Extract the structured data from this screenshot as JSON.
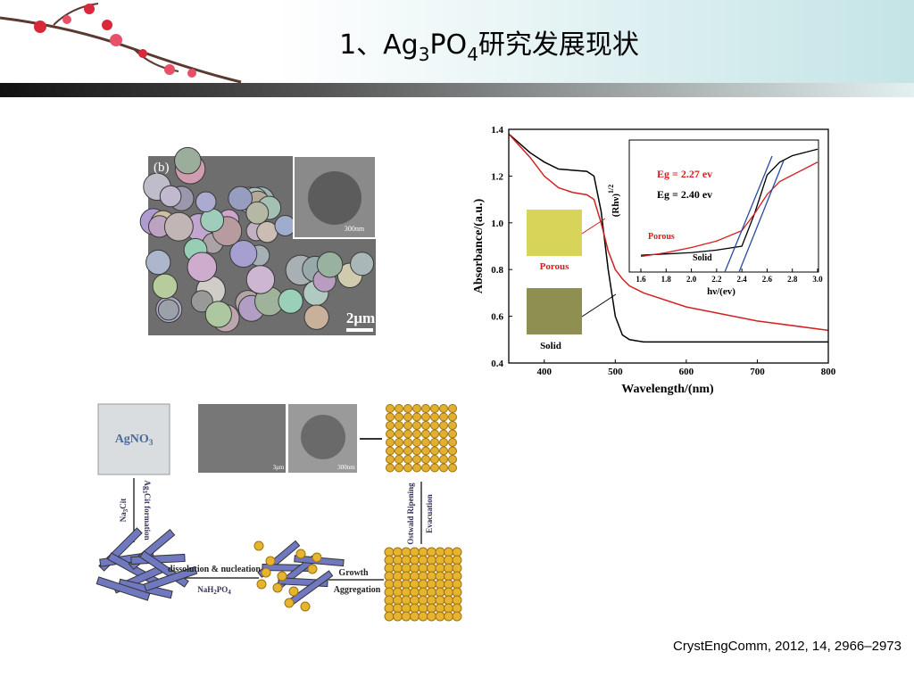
{
  "header": {
    "title": [
      "1、Ag",
      "3",
      "PO",
      "4",
      "研究发展现状"
    ]
  },
  "sem_image": {
    "panel": "(b)",
    "inset_scale": "300nm",
    "scale": "2μm"
  },
  "spectrum": {
    "type": "line",
    "xlabel": "Wavelength/(nm)",
    "ylabel": "Absorbance/(a.u.)",
    "xlim": [
      350,
      800
    ],
    "ylim": [
      0.4,
      1.4
    ],
    "xticks": [
      400,
      500,
      600,
      700,
      800
    ],
    "yticks": [
      0.4,
      0.6,
      0.8,
      {
        "value": 1,
        "label": "1.0"
      },
      1.2,
      1.4
    ],
    "x": [
      350,
      380,
      400,
      420,
      440,
      460,
      470,
      480,
      490,
      500,
      510,
      520,
      540,
      600,
      700,
      800
    ],
    "series": [
      {
        "name": "Solid",
        "color": "#000000",
        "values": [
          1.38,
          1.3,
          1.26,
          1.23,
          1.225,
          1.22,
          1.2,
          1.05,
          0.8,
          0.6,
          0.52,
          0.5,
          0.49,
          0.49,
          0.49,
          0.49
        ]
      },
      {
        "name": "Porous",
        "color": "#d42020",
        "values": [
          1.38,
          1.28,
          1.2,
          1.15,
          1.13,
          1.12,
          1.1,
          1.0,
          0.88,
          0.8,
          0.76,
          0.73,
          0.7,
          0.64,
          0.58,
          0.54
        ]
      }
    ],
    "inset": {
      "type": "line",
      "xlabel": "hν/(ev)",
      "ylabel": [
        "(Rhν)",
        "1/2"
      ],
      "xlim": [
        1.6,
        3.0
      ],
      "ylim": [
        0,
        1
      ],
      "xticks": [
        1.6,
        1.8,
        {
          "value": 2,
          "label": "2.0"
        },
        2.2,
        2.4,
        2.6,
        2.8,
        {
          "value": 3,
          "label": "3.0"
        }
      ],
      "x": [
        1.6,
        1.8,
        2.0,
        2.2,
        2.4,
        2.5,
        2.6,
        2.7,
        2.8,
        3.0
      ],
      "series": [
        {
          "name": "Solid",
          "color": "#000000",
          "values": [
            0.13,
            0.14,
            0.15,
            0.17,
            0.2,
            0.45,
            0.75,
            0.85,
            0.9,
            0.95
          ]
        },
        {
          "name": "Porous",
          "color": "#d42020",
          "values": [
            0.12,
            0.15,
            0.19,
            0.24,
            0.32,
            0.45,
            0.6,
            0.7,
            0.75,
            0.85
          ]
        }
      ],
      "annotations": [
        {
          "text": "Eg = 2.27 ev",
          "color": "#d42020"
        },
        {
          "text": "Eg = 2.40 ev",
          "color": "#000000"
        }
      ]
    }
  },
  "scheme": {
    "start": [
      "AgNO",
      "3"
    ],
    "reagent": [
      "Na",
      "3",
      "Cit"
    ],
    "step1": [
      "Ag",
      "3",
      "Cit formation"
    ],
    "step2": "dissolution & nucleation",
    "reagent2": [
      "NaH",
      "2",
      "PO",
      "4"
    ],
    "step3": "Growth",
    "step3b": "Aggregation",
    "step4": "Ostwald Ripening",
    "step4b": "Evacuation",
    "scale_a": "3μm",
    "scale_b": "300nm"
  },
  "citation": "CrystEngComm, 2012, 14, 2966–2973"
}
